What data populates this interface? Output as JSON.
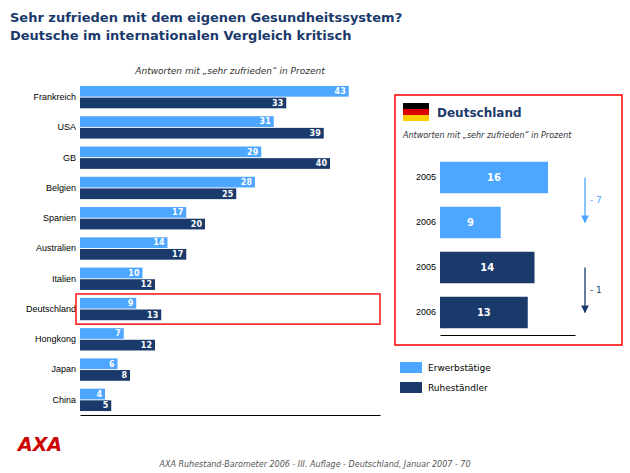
{
  "chart_data": [
    {
      "type": "bar",
      "orientation": "horizontal",
      "title": "Sehr zufrieden mit dem eigenen Gesundheitssystem?",
      "subtitle": "Deutsche im internationalen Vergleich kritisch",
      "annotations": [
        "Antworten mit „sehr zufrieden“ in Prozent",
        "AXA Ruhestand-Barometer 2006 - III. Auflage - Deutschland,  Januar 2007 - 70",
        "AXA"
      ],
      "categories": [
        "Frankreich",
        "USA",
        "GB",
        "Belgien",
        "Spanien",
        "Australien",
        "Italien",
        "Deutschland",
        "Hongkong",
        "Japan",
        "China"
      ],
      "series": [
        {
          "name": "Erwerbstätige",
          "color": "#4da6ff",
          "values": [
            43,
            31,
            29,
            28,
            17,
            14,
            10,
            9,
            7,
            6,
            4
          ]
        },
        {
          "name": "Ruheständler",
          "color": "#1a3a6b",
          "values": [
            33,
            39,
            40,
            25,
            20,
            17,
            12,
            13,
            12,
            8,
            5
          ]
        }
      ],
      "xlim": [
        0,
        48
      ],
      "data_labels": true,
      "tick_labels": "y",
      "legend": "lower right"
    },
    {
      "type": "bar",
      "orientation": "horizontal",
      "title": "Deutschland",
      "subtitle": "Antworten mit „sehr zufrieden“ in Prozent",
      "categories": [
        "2005",
        "2006",
        "2005",
        "2006"
      ],
      "series": [
        {
          "color": "#4da6ff",
          "values": [
            16,
            9,
            null,
            null
          ]
        },
        {
          "color": "#1a3a6b",
          "values": [
            null,
            null,
            14,
            13
          ]
        }
      ],
      "xlim": [
        0,
        20
      ],
      "annotations": [
        "- 7",
        "- 1"
      ],
      "data_labels": true,
      "tick_labels": "y"
    }
  ]
}
